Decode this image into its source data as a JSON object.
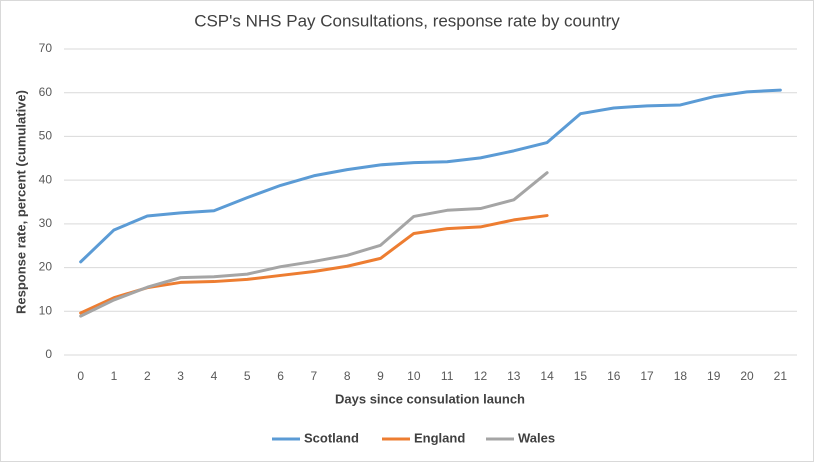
{
  "chart_data": {
    "type": "line",
    "title": "CSP's NHS Pay Consultations, response rate by country",
    "x_label": "Days since consulation launch",
    "y_label": "Response rate, percent (cumulative)",
    "x": [
      0,
      1,
      2,
      3,
      4,
      5,
      6,
      7,
      8,
      9,
      10,
      11,
      12,
      13,
      14,
      15,
      16,
      17,
      18,
      19,
      20,
      21
    ],
    "xlim": [
      -0.5,
      21.5
    ],
    "xticks": [
      0,
      1,
      2,
      3,
      4,
      5,
      6,
      7,
      8,
      9,
      10,
      11,
      12,
      13,
      14,
      15,
      16,
      17,
      18,
      19,
      20,
      21
    ],
    "ylim": [
      0,
      70
    ],
    "yticks": [
      0,
      10,
      20,
      30,
      40,
      50,
      60,
      70
    ],
    "grid": true,
    "legend": "bottom",
    "series": [
      {
        "name": "Scotland",
        "color": "#5b9bd5",
        "values": [
          21.3,
          28.6,
          31.8,
          32.5,
          33.0,
          36.0,
          38.8,
          41.0,
          42.4,
          43.5,
          44.0,
          44.2,
          45.1,
          46.7,
          48.6,
          55.2,
          56.5,
          57.0,
          57.2,
          59.1,
          60.2,
          60.6
        ]
      },
      {
        "name": "England",
        "color": "#ed7d31",
        "values": [
          9.6,
          13.1,
          15.4,
          16.6,
          16.8,
          17.3,
          18.2,
          19.1,
          20.3,
          22.1,
          27.8,
          28.9,
          29.3,
          30.9,
          31.9,
          null,
          null,
          null,
          null,
          null,
          null,
          null
        ]
      },
      {
        "name": "Wales",
        "color": "#a5a5a5",
        "values": [
          8.9,
          12.6,
          15.5,
          17.7,
          17.9,
          18.5,
          20.2,
          21.4,
          22.8,
          25.1,
          31.7,
          33.1,
          33.5,
          35.5,
          41.7,
          null,
          null,
          null,
          null,
          null,
          null,
          null
        ]
      }
    ]
  }
}
